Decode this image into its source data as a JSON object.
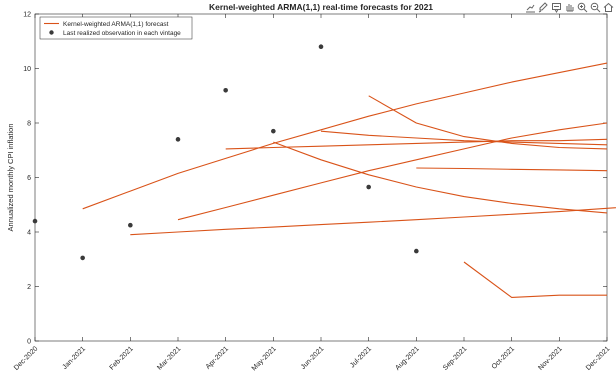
{
  "toolbar": {
    "icons": [
      "export-icon",
      "brush-icon",
      "datatip-icon",
      "pan-icon",
      "zoom-in-icon",
      "zoom-out-icon",
      "home-icon"
    ]
  },
  "colors": {
    "forecast": "#D95319",
    "observation": "#3A3A3A",
    "axis": "#262626"
  },
  "chart_data": {
    "type": "line",
    "title": "Kernel-weighted ARMA(1,1) real-time forecasts for 2021",
    "xlabel": "",
    "ylabel": "Annualized monthly CPI inflation",
    "ylim": [
      0,
      12
    ],
    "yticks": [
      0,
      2,
      4,
      6,
      8,
      10,
      12
    ],
    "xlim": [
      0,
      12
    ],
    "xticks": [
      "Dec-2020",
      "Jan-2021",
      "Feb-2021",
      "Mar-2021",
      "Apr-2021",
      "May-2021",
      "Jun-2021",
      "Jul-2021",
      "Aug-2021",
      "Sep-2021",
      "Oct-2021",
      "Nov-2021",
      "Dec-2021"
    ],
    "grid": false,
    "legend": {
      "position": "top-left",
      "entries": [
        "Kernel-weighted ARMA(1,1) forecast",
        "Last realized observation in each vintage"
      ]
    },
    "observations": [
      {
        "x": "Dec-2020",
        "y": 4.4
      },
      {
        "x": "Jan-2021",
        "y": 3.05
      },
      {
        "x": "Feb-2021",
        "y": 4.25
      },
      {
        "x": "Mar-2021",
        "y": 7.4
      },
      {
        "x": "Apr-2021",
        "y": 9.2
      },
      {
        "x": "May-2021",
        "y": 7.7
      },
      {
        "x": "Jun-2021",
        "y": 10.8
      },
      {
        "x": "Jul-2021",
        "y": 5.65
      },
      {
        "x": "Aug-2021",
        "y": 3.3
      }
    ],
    "forecasts": [
      {
        "start": "Jan-2021",
        "y": [
          4.85,
          5.5,
          6.15,
          6.7,
          7.25,
          7.75,
          8.25,
          8.7,
          9.1,
          9.5,
          9.85,
          10.2
        ]
      },
      {
        "start": "Feb-2021",
        "y": [
          3.9,
          4.0,
          4.1,
          4.18,
          4.27,
          4.36,
          4.45,
          4.55,
          4.65,
          4.75,
          4.87,
          5.0
        ]
      },
      {
        "start": "Mar-2021",
        "y": [
          4.45,
          4.9,
          5.35,
          5.8,
          6.25,
          6.65,
          7.05,
          7.45,
          7.75,
          8.0
        ]
      },
      {
        "start": "Apr-2021",
        "y": [
          7.05,
          7.1,
          7.15,
          7.2,
          7.25,
          7.3,
          7.35,
          7.35,
          7.4
        ]
      },
      {
        "start": "May-2021",
        "y": [
          7.3,
          6.65,
          6.1,
          5.65,
          5.3,
          5.05,
          4.85,
          4.7
        ]
      },
      {
        "start": "Jun-2021",
        "y": [
          7.7,
          7.55,
          7.45,
          7.35,
          7.3,
          7.25,
          7.2
        ]
      },
      {
        "start": "Jul-2021",
        "y": [
          9.0,
          8.0,
          7.5,
          7.25,
          7.1,
          7.05
        ]
      },
      {
        "start": "Aug-2021",
        "y": [
          6.35,
          6.33,
          6.3,
          6.28,
          6.25
        ]
      },
      {
        "start": "Sep-2021",
        "y": [
          2.9,
          1.6,
          1.68,
          1.68
        ]
      }
    ]
  }
}
